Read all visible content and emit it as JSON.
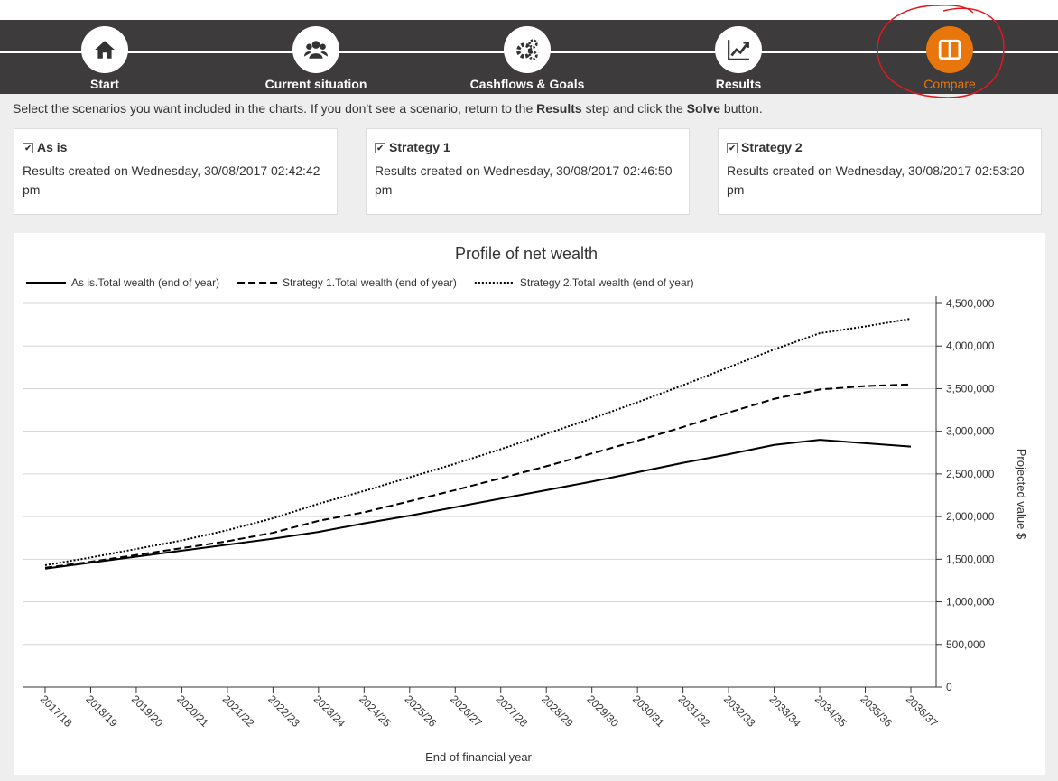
{
  "steps": [
    {
      "label": "Start",
      "icon": "home"
    },
    {
      "label": "Current situation",
      "icon": "people"
    },
    {
      "label": "Cashflows & Goals",
      "icon": "gears"
    },
    {
      "label": "Results",
      "icon": "trend"
    },
    {
      "label": "Compare",
      "icon": "columns",
      "active": true
    }
  ],
  "instruction": [
    "Select the scenarios you want included in the charts. If you don't see a scenario, return to the ",
    "Results",
    " step and click the ",
    "Solve",
    " button."
  ],
  "scenarios": [
    {
      "name": "As is",
      "checked": true,
      "created": "Results created on Wednesday, 30/08/2017 02:42:42 pm"
    },
    {
      "name": "Strategy 1",
      "checked": true,
      "created": "Results created on Wednesday, 30/08/2017 02:46:50 pm"
    },
    {
      "name": "Strategy 2",
      "checked": true,
      "created": "Results created on Wednesday, 30/08/2017 02:53:20 pm"
    }
  ],
  "chart_data": {
    "type": "line",
    "title": "Profile of net wealth",
    "x_label": "End of financial year",
    "y_label": "Projected value $",
    "y_axis_side": "right",
    "grid": true,
    "legend": "top-left",
    "categories": [
      "2017/18",
      "2018/19",
      "2019/20",
      "2020/21",
      "2021/22",
      "2022/23",
      "2023/24",
      "2024/25",
      "2025/26",
      "2026/27",
      "2027/28",
      "2028/29",
      "2029/30",
      "2030/31",
      "2031/32",
      "2032/33",
      "2033/34",
      "2034/35",
      "2035/36",
      "2036/37"
    ],
    "series": [
      {
        "name": "As is.Total wealth (end of year)",
        "color": "#000000",
        "line_style": "solid",
        "values": [
          1390000,
          1460000,
          1530000,
          1600000,
          1670000,
          1740000,
          1820000,
          1920000,
          2010000,
          2110000,
          2210000,
          2310000,
          2410000,
          2520000,
          2630000,
          2730000,
          2840000,
          2900000,
          2860000,
          2820000
        ]
      },
      {
        "name": "Strategy 1.Total wealth (end of year)",
        "color": "#000000",
        "line_style": "dashed",
        "values": [
          1400000,
          1470000,
          1550000,
          1630000,
          1710000,
          1810000,
          1950000,
          2050000,
          2180000,
          2310000,
          2450000,
          2590000,
          2740000,
          2890000,
          3050000,
          3220000,
          3380000,
          3490000,
          3530000,
          3550000
        ]
      },
      {
        "name": "Strategy 2.Total wealth (end of year)",
        "color": "#000000",
        "line_style": "dotted",
        "values": [
          1430000,
          1520000,
          1620000,
          1720000,
          1840000,
          1980000,
          2150000,
          2300000,
          2460000,
          2620000,
          2790000,
          2970000,
          3150000,
          3340000,
          3540000,
          3750000,
          3960000,
          4150000,
          4230000,
          4320000
        ]
      }
    ],
    "ylim": [
      0,
      4500000
    ],
    "yticks": [
      0,
      {
        "value": 500000,
        "label": "500,000"
      },
      {
        "value": 1000000,
        "label": "1,000,000"
      },
      {
        "value": 1500000,
        "label": "1,500,000"
      },
      {
        "value": 2000000,
        "label": "2,000,000"
      },
      {
        "value": 2500000,
        "label": "2,500,000"
      },
      {
        "value": 3000000,
        "label": "3,000,000"
      },
      {
        "value": 3500000,
        "label": "3,500,000"
      },
      {
        "value": 4000000,
        "label": "4,000,000"
      },
      {
        "value": 4500000,
        "label": "4,500,000"
      }
    ]
  }
}
